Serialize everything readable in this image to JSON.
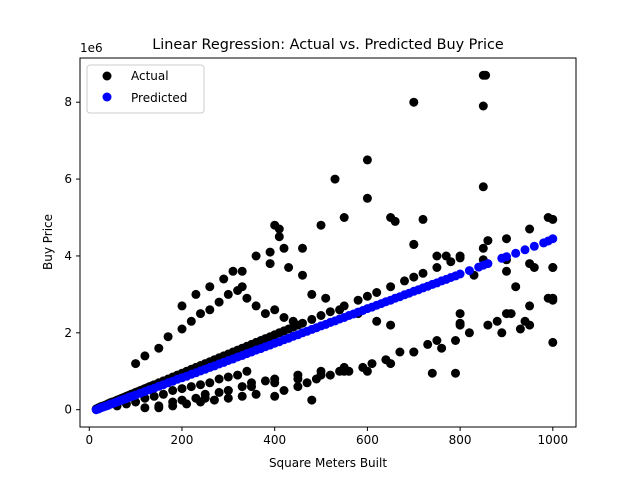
{
  "chart_data": {
    "type": "scatter",
    "title": "Linear Regression: Actual vs. Predicted Buy Price",
    "xlabel": "Square Meters Built",
    "ylabel": "Buy Price",
    "y_offset_text": "1e6",
    "xlim": [
      -20,
      1050
    ],
    "ylim": [
      -0.45,
      9.15
    ],
    "x_ticks": [
      0,
      200,
      400,
      600,
      800,
      1000
    ],
    "x_tick_labels": [
      "0",
      "200",
      "400",
      "600",
      "800",
      "1000"
    ],
    "y_ticks": [
      0,
      2,
      4,
      6,
      8
    ],
    "y_tick_labels": [
      "0",
      "2",
      "4",
      "6",
      "8"
    ],
    "grid": false,
    "legend_position": "top-left",
    "series": [
      {
        "name": "Actual",
        "color": "#000000",
        "x": [
          15,
          20,
          25,
          30,
          35,
          40,
          45,
          50,
          55,
          60,
          65,
          70,
          75,
          80,
          85,
          90,
          95,
          100,
          105,
          110,
          115,
          120,
          125,
          130,
          135,
          140,
          150,
          160,
          170,
          180,
          190,
          200,
          210,
          220,
          230,
          240,
          250,
          260,
          270,
          280,
          290,
          300,
          310,
          320,
          330,
          340,
          350,
          360,
          370,
          380,
          390,
          400,
          410,
          420,
          430,
          440,
          450,
          460,
          480,
          500,
          520,
          550,
          580,
          600,
          620,
          650,
          680,
          700,
          720,
          750,
          780,
          800,
          850,
          900,
          950,
          1000,
          100,
          120,
          150,
          170,
          200,
          220,
          240,
          260,
          280,
          300,
          320,
          340,
          360,
          380,
          400,
          420,
          440,
          60,
          80,
          100,
          120,
          140,
          160,
          180,
          200,
          220,
          240,
          260,
          280,
          300,
          320,
          340,
          120,
          150,
          180,
          200,
          230,
          250,
          280,
          300,
          330,
          350,
          380,
          400,
          450,
          500,
          550,
          200,
          230,
          260,
          290,
          310,
          330,
          360,
          390,
          410,
          430,
          460,
          480,
          510,
          540,
          580,
          620,
          650,
          700,
          750,
          800,
          850,
          900,
          950,
          1000,
          250,
          300,
          350,
          400,
          450,
          500,
          550,
          600,
          650,
          700,
          750,
          800,
          900,
          1000,
          150,
          180,
          210,
          240,
          270,
          300,
          330,
          360,
          400,
          420,
          450,
          470,
          490,
          520,
          540,
          560,
          590,
          610,
          640,
          670,
          700,
          730,
          760,
          790,
          820,
          860,
          880,
          910,
          950,
          990,
          850,
          855,
          700,
          850,
          600,
          600,
          530,
          550,
          650,
          660,
          400,
          410,
          420,
          390,
          330,
          460,
          500,
          700,
          720,
          770,
          850,
          900,
          950,
          1000,
          990,
          960,
          1000,
          920,
          860,
          830,
          800,
          890,
          930,
          940,
          1000,
          790,
          800,
          740,
          480
        ],
        "y": [
          0.02,
          0.05,
          0.08,
          0.1,
          0.12,
          0.15,
          0.18,
          0.2,
          0.22,
          0.25,
          0.27,
          0.3,
          0.32,
          0.35,
          0.37,
          0.4,
          0.42,
          0.45,
          0.47,
          0.5,
          0.52,
          0.55,
          0.57,
          0.6,
          0.62,
          0.65,
          0.7,
          0.75,
          0.8,
          0.85,
          0.9,
          0.95,
          1.0,
          1.05,
          1.1,
          1.15,
          1.2,
          1.25,
          1.3,
          1.35,
          1.4,
          1.45,
          1.5,
          1.55,
          1.6,
          1.65,
          1.7,
          1.75,
          1.8,
          1.85,
          1.9,
          1.95,
          2.0,
          2.05,
          2.1,
          2.15,
          2.2,
          2.25,
          2.35,
          2.45,
          2.55,
          2.7,
          2.85,
          2.95,
          3.05,
          3.2,
          3.35,
          3.45,
          3.55,
          3.7,
          3.85,
          3.95,
          4.2,
          4.45,
          4.7,
          4.95,
          1.2,
          1.4,
          1.6,
          1.9,
          2.1,
          2.3,
          2.5,
          2.6,
          2.8,
          3.0,
          3.1,
          2.9,
          2.7,
          2.5,
          2.6,
          2.4,
          2.3,
          0.1,
          0.15,
          0.2,
          0.3,
          0.35,
          0.4,
          0.5,
          0.55,
          0.6,
          0.65,
          0.7,
          0.8,
          0.85,
          0.9,
          1.0,
          0.05,
          0.1,
          0.2,
          0.25,
          0.3,
          0.4,
          0.45,
          0.5,
          0.6,
          0.7,
          0.75,
          0.8,
          0.9,
          1.0,
          1.1,
          2.7,
          3.0,
          3.2,
          3.4,
          3.6,
          3.2,
          4.0,
          3.8,
          4.5,
          3.7,
          3.5,
          3.0,
          2.9,
          2.6,
          2.5,
          2.3,
          2.2,
          4.3,
          4.0,
          4.0,
          3.9,
          3.9,
          3.8,
          3.7,
          0.3,
          0.5,
          0.6,
          0.7,
          0.8,
          0.9,
          1.0,
          1.0,
          1.2,
          1.5,
          1.8,
          2.2,
          2.5,
          2.9,
          0.05,
          0.1,
          0.15,
          0.2,
          0.25,
          0.3,
          0.35,
          0.4,
          0.35,
          0.5,
          0.6,
          0.7,
          0.8,
          0.9,
          1.0,
          1.0,
          1.1,
          1.2,
          1.3,
          1.5,
          1.5,
          1.7,
          1.6,
          1.8,
          2.0,
          2.2,
          2.3,
          2.5,
          2.7,
          2.9,
          8.7,
          8.7,
          8.0,
          7.9,
          6.5,
          5.5,
          6.0,
          5.0,
          5.0,
          4.9,
          4.8,
          4.7,
          4.2,
          4.1,
          3.6,
          4.2,
          4.8,
          4.3,
          4.95,
          4.0,
          5.8,
          3.6,
          2.2,
          3.7,
          5.0,
          3.7,
          2.85,
          3.2,
          4.4,
          3.5,
          2.5,
          2.0,
          2.1,
          2.3,
          1.75,
          0.95,
          2.25,
          0.95,
          0.25
        ]
      },
      {
        "name": "Predicted",
        "color": "#0000ff",
        "x": [
          15,
          20,
          25,
          30,
          35,
          40,
          45,
          50,
          55,
          60,
          65,
          70,
          75,
          80,
          85,
          90,
          95,
          100,
          110,
          120,
          130,
          140,
          150,
          160,
          170,
          180,
          190,
          200,
          210,
          220,
          230,
          240,
          250,
          260,
          270,
          280,
          290,
          300,
          310,
          320,
          330,
          340,
          350,
          360,
          370,
          380,
          390,
          400,
          410,
          420,
          430,
          440,
          450,
          460,
          470,
          480,
          490,
          500,
          510,
          520,
          530,
          540,
          550,
          560,
          570,
          580,
          590,
          600,
          610,
          620,
          630,
          640,
          650,
          660,
          670,
          680,
          690,
          700,
          710,
          720,
          730,
          740,
          750,
          760,
          770,
          780,
          790,
          800,
          820,
          840,
          850,
          860,
          890,
          900,
          920,
          940,
          960,
          980,
          990,
          1000
        ],
        "y": [
          0.0,
          0.02,
          0.05,
          0.07,
          0.09,
          0.11,
          0.14,
          0.16,
          0.18,
          0.2,
          0.23,
          0.25,
          0.27,
          0.29,
          0.32,
          0.34,
          0.36,
          0.38,
          0.43,
          0.47,
          0.52,
          0.56,
          0.61,
          0.65,
          0.7,
          0.74,
          0.79,
          0.83,
          0.87,
          0.92,
          0.96,
          1.01,
          1.05,
          1.1,
          1.14,
          1.19,
          1.23,
          1.28,
          1.32,
          1.37,
          1.41,
          1.46,
          1.5,
          1.55,
          1.59,
          1.64,
          1.68,
          1.73,
          1.77,
          1.82,
          1.86,
          1.91,
          1.95,
          2.0,
          2.04,
          2.09,
          2.13,
          2.18,
          2.22,
          2.27,
          2.31,
          2.36,
          2.4,
          2.45,
          2.49,
          2.54,
          2.58,
          2.63,
          2.67,
          2.72,
          2.76,
          2.81,
          2.85,
          2.9,
          2.94,
          2.99,
          3.03,
          3.08,
          3.12,
          3.17,
          3.21,
          3.26,
          3.3,
          3.35,
          3.39,
          3.44,
          3.48,
          3.53,
          3.62,
          3.71,
          3.76,
          3.8,
          3.94,
          3.98,
          4.07,
          4.16,
          4.25,
          4.34,
          4.39,
          4.45
        ]
      }
    ]
  }
}
